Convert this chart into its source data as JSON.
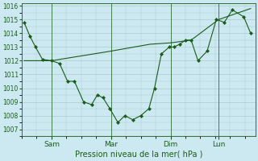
{
  "title": "",
  "xlabel": "Pression niveau de la mer( hPa )",
  "bg_color": "#cce8f0",
  "line_color": "#1a5c1a",
  "grid_color": "#aacccc",
  "ylim": [
    1006.5,
    1016.2
  ],
  "yticks": [
    1007,
    1008,
    1009,
    1010,
    1011,
    1012,
    1013,
    1014,
    1015,
    1016
  ],
  "x_tick_labels": [
    "Sam",
    "Mar",
    "Dim",
    "Lun"
  ],
  "x_tick_positions": [
    0.12,
    0.38,
    0.64,
    0.85
  ],
  "line1_x": [
    0.0,
    0.025,
    0.05,
    0.08,
    0.12,
    0.155,
    0.19,
    0.22,
    0.26,
    0.295,
    0.32,
    0.345,
    0.375,
    0.41,
    0.44,
    0.475,
    0.51,
    0.545,
    0.57,
    0.6,
    0.635,
    0.655,
    0.68,
    0.705,
    0.73,
    0.76,
    0.8,
    0.84,
    0.875,
    0.91,
    0.96,
    0.99
  ],
  "line1_y": [
    1014.8,
    1013.8,
    1013.0,
    1012.1,
    1012.0,
    1011.8,
    1010.5,
    1010.5,
    1009.0,
    1008.8,
    1009.5,
    1009.3,
    1008.5,
    1007.5,
    1008.0,
    1007.7,
    1008.0,
    1008.5,
    1010.0,
    1012.5,
    1013.0,
    1013.0,
    1013.2,
    1013.5,
    1013.5,
    1012.0,
    1012.7,
    1015.0,
    1014.8,
    1015.7,
    1015.2,
    1014.0
  ],
  "line2_x": [
    0.0,
    0.12,
    0.38,
    0.55,
    0.64,
    0.73,
    0.85,
    0.99
  ],
  "line2_y": [
    1012.0,
    1012.0,
    1012.7,
    1013.2,
    1013.3,
    1013.5,
    1015.0,
    1015.8
  ],
  "figsize": [
    3.2,
    2.0
  ],
  "dpi": 100
}
